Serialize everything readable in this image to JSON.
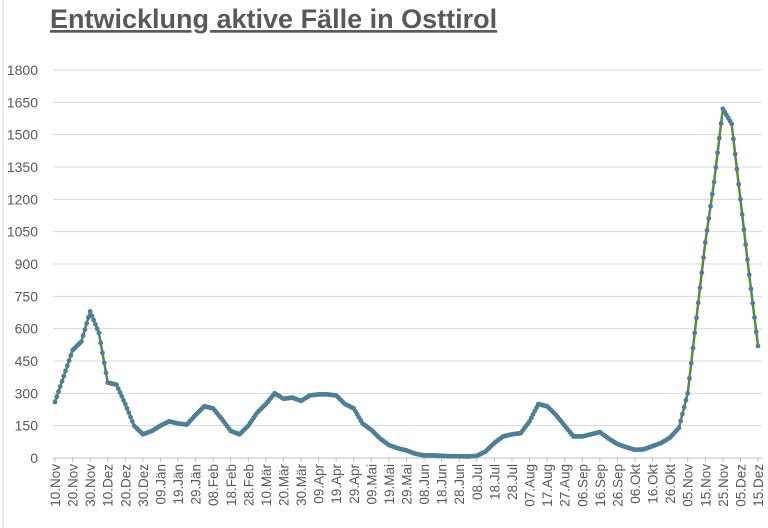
{
  "chart_data": {
    "type": "line",
    "title": "Entwicklung aktive Fälle in Osttirol",
    "xlabel": "",
    "ylabel": "",
    "ylim": [
      0,
      1800
    ],
    "yticks": [
      0,
      150,
      300,
      450,
      600,
      750,
      900,
      1050,
      1200,
      1350,
      1500,
      1650,
      1800
    ],
    "grid": true,
    "legend": "none",
    "x_tick_interval_days": 10,
    "x_tick_labels": [
      "10.Nov",
      "20.Nov",
      "30.Nov",
      "10.Dez",
      "20.Dez",
      "30.Dez",
      "09.Jän",
      "19.Jän",
      "29.Jän",
      "08.Feb",
      "18.Feb",
      "28.Feb",
      "10.Mär",
      "20.Mär",
      "30.Mär",
      "09.Apr",
      "19.Apr",
      "29.Apr",
      "09.Mai",
      "19.Mai",
      "29.Mai",
      "08.Jun",
      "18.Jun",
      "28.Jun",
      "08.Jul",
      "18.Jul",
      "28.Jul",
      "07.Aug",
      "17.Aug",
      "27.Aug",
      "06.Sep",
      "16.Sep",
      "26.Sep",
      "06.Okt",
      "16.Okt",
      "26.Okt",
      "05.Nov",
      "15.Nov",
      "25.Nov",
      "05.Dez",
      "15.Dez"
    ],
    "sample_interval_days": 5,
    "series": [
      {
        "values": [
          260,
          380,
          500,
          540,
          680,
          580,
          350,
          340,
          250,
          150,
          110,
          125,
          150,
          170,
          160,
          155,
          200,
          240,
          230,
          180,
          125,
          110,
          150,
          210,
          250,
          300,
          275,
          280,
          265,
          290,
          295,
          295,
          290,
          250,
          230,
          160,
          130,
          90,
          60,
          45,
          35,
          20,
          12,
          12,
          10,
          8,
          8,
          7,
          10,
          30,
          70,
          100,
          110,
          115,
          170,
          250,
          240,
          200,
          150,
          100,
          100,
          110,
          120,
          90,
          65,
          50,
          38,
          40,
          55,
          70,
          95,
          140,
          300,
          650,
          1000,
          1280,
          1620,
          1550,
          1200,
          850,
          520
        ]
      }
    ],
    "colors": {
      "line": "#5b8a3a",
      "marker": "#4f7f96",
      "grid": "#d9d9d9",
      "text": "#595959"
    }
  }
}
